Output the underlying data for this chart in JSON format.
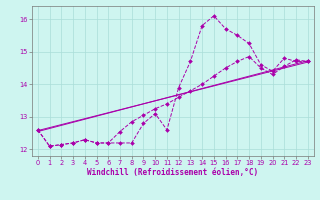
{
  "background_color": "#cef5f0",
  "grid_color": "#aaddd8",
  "line_color": "#aa00aa",
  "xlabel": "Windchill (Refroidissement éolien,°C)",
  "xlabel_color": "#aa00aa",
  "ylim": [
    11.8,
    16.4
  ],
  "xlim": [
    -0.5,
    23.5
  ],
  "yticks": [
    12,
    13,
    14,
    15,
    16
  ],
  "xticks": [
    0,
    1,
    2,
    3,
    4,
    5,
    6,
    7,
    8,
    9,
    10,
    11,
    12,
    13,
    14,
    15,
    16,
    17,
    18,
    19,
    20,
    21,
    22,
    23
  ],
  "series1": {
    "x": [
      0,
      1,
      2,
      3,
      4,
      5,
      6,
      7,
      8,
      9,
      10,
      11,
      12,
      13,
      14,
      15,
      16,
      17,
      18,
      19,
      20,
      21,
      22,
      23
    ],
    "y": [
      12.6,
      12.1,
      12.15,
      12.2,
      12.3,
      12.2,
      12.2,
      12.2,
      12.2,
      12.8,
      13.1,
      12.6,
      13.9,
      14.7,
      15.8,
      16.1,
      15.7,
      15.5,
      15.25,
      14.6,
      14.4,
      14.8,
      14.7,
      14.7
    ]
  },
  "series2": {
    "x": [
      0,
      1,
      2,
      3,
      4,
      5,
      6,
      7,
      8,
      9,
      10,
      11,
      12,
      13,
      14,
      15,
      16,
      17,
      18,
      19,
      20,
      21,
      22,
      23
    ],
    "y": [
      12.6,
      12.1,
      12.15,
      12.2,
      12.3,
      12.2,
      12.2,
      12.55,
      12.85,
      13.05,
      13.25,
      13.4,
      13.6,
      13.8,
      14.0,
      14.25,
      14.5,
      14.7,
      14.85,
      14.5,
      14.3,
      14.55,
      14.75,
      14.7
    ]
  },
  "series3": {
    "x": [
      0,
      23
    ],
    "y": [
      12.55,
      14.72
    ]
  },
  "series4": {
    "x": [
      0,
      23
    ],
    "y": [
      12.58,
      14.68
    ]
  }
}
